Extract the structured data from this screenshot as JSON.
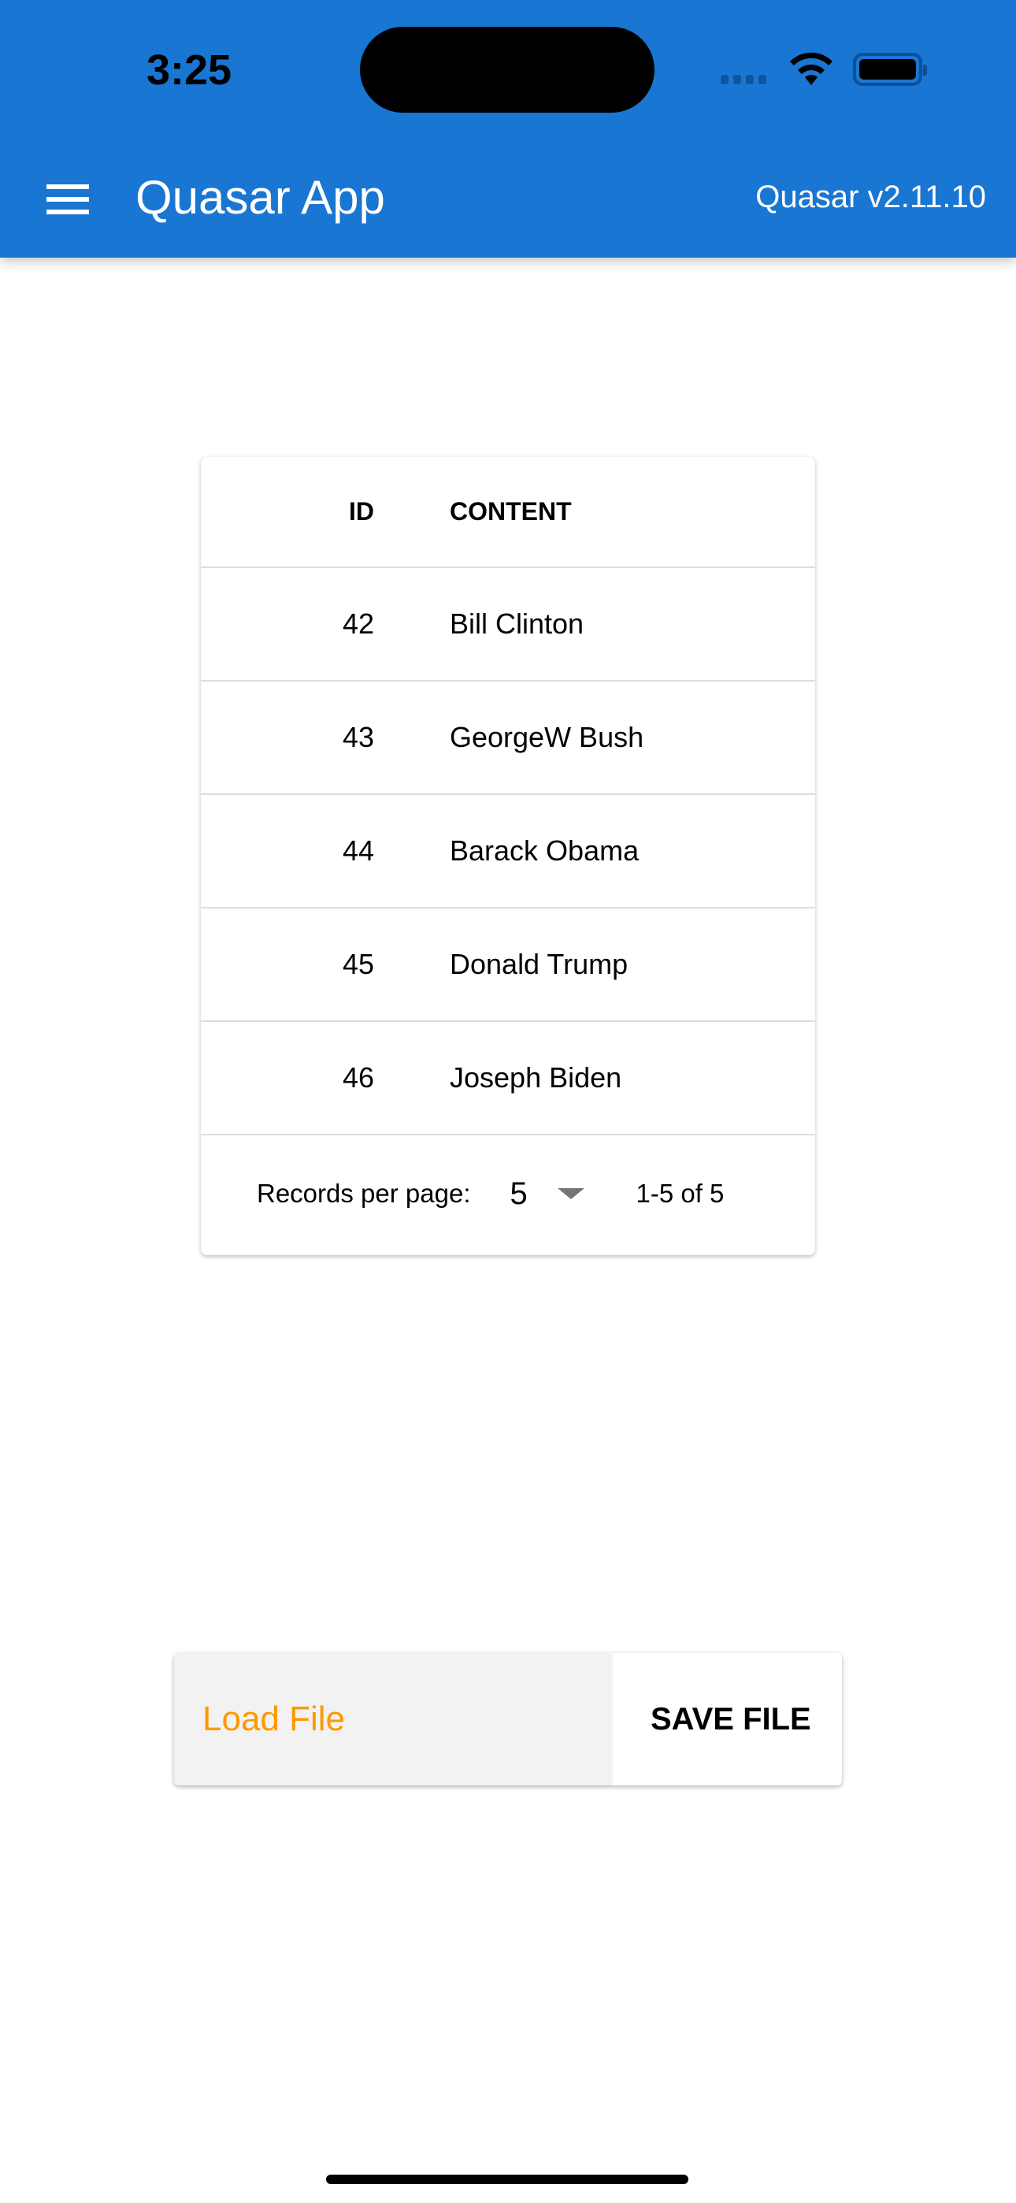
{
  "status_bar": {
    "time": "3:25",
    "icons": [
      "signal-icon",
      "wifi-icon",
      "battery-icon"
    ]
  },
  "header": {
    "title": "Quasar App",
    "version": "Quasar v2.11.10",
    "menu_icon": "hamburger-menu-icon",
    "color": "#1976d2"
  },
  "table": {
    "columns": [
      "ID",
      "CONTENT"
    ],
    "rows": [
      {
        "id": "42",
        "content": "Bill Clinton"
      },
      {
        "id": "43",
        "content": "GeorgeW Bush"
      },
      {
        "id": "44",
        "content": "Barack Obama"
      },
      {
        "id": "45",
        "content": "Donald Trump"
      },
      {
        "id": "46",
        "content": "Joseph Biden"
      }
    ],
    "footer": {
      "records_label": "Records per page:",
      "per_page": "5",
      "range": "1-5 of 5"
    }
  },
  "actions": {
    "load_file": "Load File",
    "save_file": "SAVE FILE",
    "load_color": "#ff9800"
  }
}
